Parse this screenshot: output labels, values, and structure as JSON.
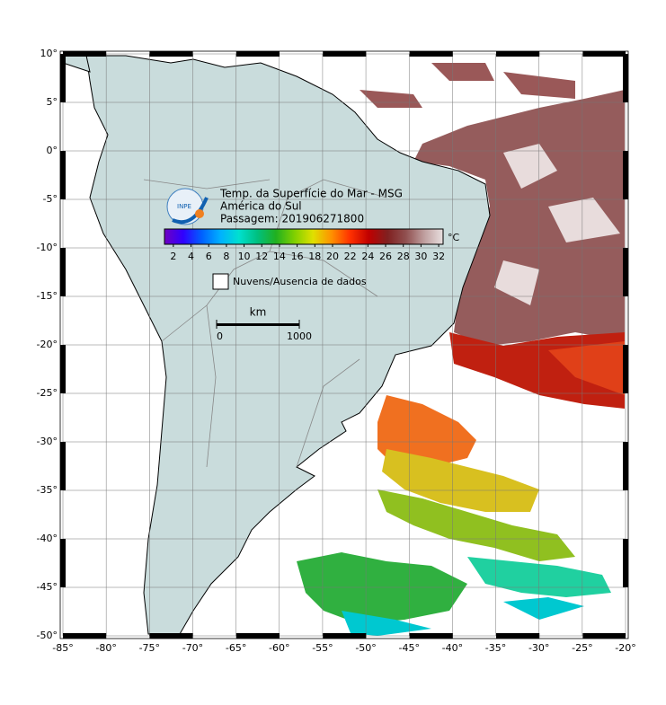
{
  "map": {
    "title": "Temp. da Superfície do Mar - MSG",
    "subtitle": "América do Sul",
    "pass": "Passagem: 201906271800",
    "logo": "INPE",
    "xlim": [
      -85,
      -20
    ],
    "ylim": [
      -50,
      10
    ],
    "xticks": [
      {
        "value": -85,
        "label": "-85°"
      },
      {
        "value": -80,
        "label": "-80°"
      },
      {
        "value": -75,
        "label": "-75°"
      },
      {
        "value": -70,
        "label": "-70°"
      },
      {
        "value": -65,
        "label": "-65°"
      },
      {
        "value": -60,
        "label": "-60°"
      },
      {
        "value": -55,
        "label": "-55°"
      },
      {
        "value": -50,
        "label": "-50°"
      },
      {
        "value": -45,
        "label": "-45°"
      },
      {
        "value": -40,
        "label": "-40°"
      },
      {
        "value": -35,
        "label": "-35°"
      },
      {
        "value": -30,
        "label": "-30°"
      },
      {
        "value": -25,
        "label": "-25°"
      },
      {
        "value": -20,
        "label": "-20°"
      }
    ],
    "yticks": [
      {
        "value": 10,
        "label": "10°"
      },
      {
        "value": 5,
        "label": "5°"
      },
      {
        "value": 0,
        "label": "0°"
      },
      {
        "value": -5,
        "label": "-5°"
      },
      {
        "value": -10,
        "label": "-10°"
      },
      {
        "value": -15,
        "label": "-15°"
      },
      {
        "value": -20,
        "label": "-20°"
      },
      {
        "value": -25,
        "label": "-25°"
      },
      {
        "value": -30,
        "label": "-30°"
      },
      {
        "value": -35,
        "label": "-35°"
      },
      {
        "value": -40,
        "label": "-40°"
      },
      {
        "value": -45,
        "label": "-45°"
      },
      {
        "value": -50,
        "label": "-50°"
      }
    ],
    "colorbar": {
      "lim": [
        1,
        32.5
      ],
      "ticks": [
        2,
        4,
        6,
        8,
        10,
        12,
        14,
        16,
        18,
        20,
        22,
        24,
        26,
        28,
        30,
        32
      ],
      "label": "°C",
      "colors": [
        "#7000c0",
        "#3000ff",
        "#0060ff",
        "#00b0ff",
        "#00e0d0",
        "#00c080",
        "#20b020",
        "#80d000",
        "#e0e000",
        "#ff9000",
        "#ff3000",
        "#c00000",
        "#802020",
        "#905050",
        "#c0a0a0",
        "#e8e0e0"
      ]
    },
    "legend": "Nuvens/Ausencia de dados",
    "scale_bar": {
      "label": "km",
      "ticks": [
        0,
        1000
      ]
    }
  }
}
